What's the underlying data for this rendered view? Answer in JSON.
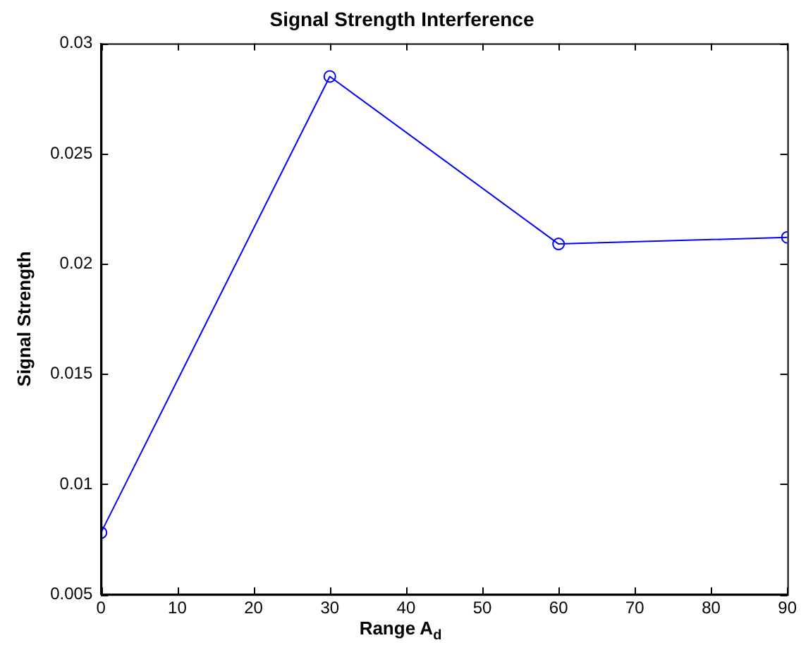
{
  "chart_data": {
    "type": "line",
    "title": "Signal Strength Interference",
    "xlabel": "Range A$_{d}$",
    "ylabel": "Signal Strength",
    "x": [
      0,
      30,
      60,
      90
    ],
    "series": [
      {
        "color": "#0000ff",
        "values": [
          0.0078,
          0.0285,
          0.0209,
          0.0212
        ]
      }
    ],
    "xlim": [
      0,
      90
    ],
    "xticks": [
      0,
      10,
      20,
      30,
      40,
      50,
      60,
      70,
      80,
      90
    ],
    "ylim": [
      0.005,
      0.03
    ],
    "yticks": [
      0.005,
      0.01,
      0.015,
      0.02,
      0.025,
      0.03
    ],
    "grid": false,
    "legend": false,
    "marker": "circle",
    "line_style": "solid"
  }
}
